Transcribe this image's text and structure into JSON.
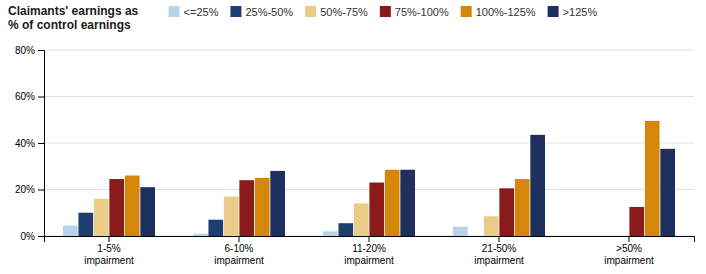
{
  "chart_data": {
    "type": "bar",
    "title": "Claimants' earnings as\n% of control earnings",
    "categories": [
      "1-5%\nimpairment",
      "6-10%\nimpairment",
      "11-20%\nimpairment",
      "21-50%\nimpairment",
      ">50%\nimpairment"
    ],
    "series": [
      {
        "name": "<=25%",
        "color": "#b8d4e8",
        "values": [
          4.5,
          1.0,
          2.0,
          4.0,
          0.0
        ]
      },
      {
        "name": "25%-50%",
        "color": "#1f3d6e",
        "values": [
          10.0,
          7.0,
          5.5,
          0.0,
          0.0
        ]
      },
      {
        "name": "50%-75%",
        "color": "#e8cc88",
        "values": [
          16.0,
          17.0,
          14.0,
          8.5,
          0.0
        ]
      },
      {
        "name": "75%-100%",
        "color": "#8b1a1a",
        "values": [
          24.5,
          24.0,
          23.0,
          20.5,
          12.5
        ]
      },
      {
        "name": "100%-125%",
        "color": "#d4870a",
        "values": [
          26.0,
          25.0,
          28.5,
          24.5,
          49.5
        ]
      },
      {
        "name": ">125%",
        "color": "#1f3060",
        "values": [
          21.0,
          28.0,
          28.5,
          43.5,
          37.5
        ]
      }
    ],
    "ylim": [
      0,
      80
    ],
    "yticks": [
      {
        "value": 0,
        "label": "0%"
      },
      {
        "value": 20,
        "label": "20%"
      },
      {
        "value": 40,
        "label": "40%"
      },
      {
        "value": 60,
        "label": "60%"
      },
      {
        "value": 80,
        "label": "80%"
      }
    ],
    "grid": true,
    "legend": "top"
  }
}
